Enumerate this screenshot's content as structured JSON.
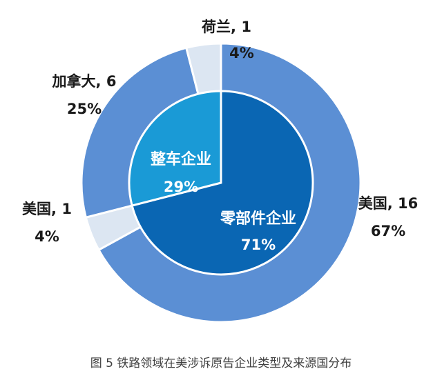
{
  "chart_data": {
    "type": "pie",
    "caption": "图 5  铁路领域在美涉诉原告企业类型及来源国分布",
    "inner": {
      "slices": [
        {
          "label": "零部件企业",
          "value": 71,
          "value_label": "71%",
          "color": "#0a66b3"
        },
        {
          "label": "整车企业",
          "value": 29,
          "value_label": "29%",
          "color": "#1a9ad6"
        }
      ]
    },
    "outer": {
      "slices": [
        {
          "label": "美国, 16",
          "value": 67,
          "value_label": "67%",
          "color": "#5b8fd4"
        },
        {
          "label": "美国, 1",
          "value": 4,
          "value_label": "4%",
          "color": "#dce6f2"
        },
        {
          "label": "加拿大, 6",
          "value": 25,
          "value_label": "25%",
          "color": "#5b8fd4"
        },
        {
          "label": "荷兰, 1",
          "value": 4,
          "value_label": "4%",
          "color": "#dce6f2"
        }
      ]
    }
  }
}
